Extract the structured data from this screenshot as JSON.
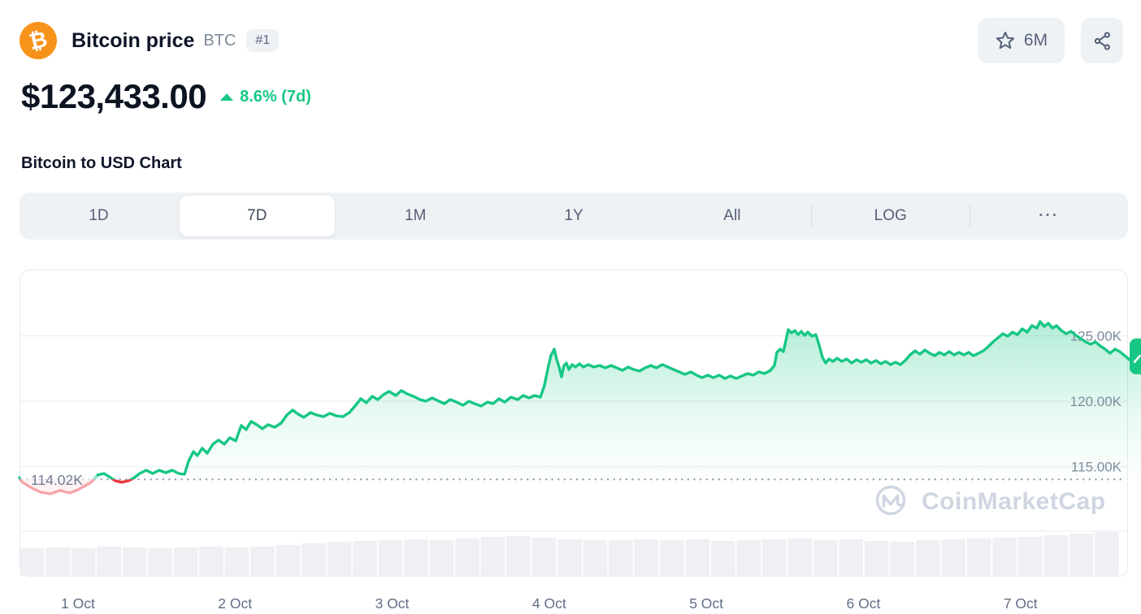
{
  "colors": {
    "accent_green": "#16c784",
    "accent_red": "#ea3943",
    "bitcoin_orange": "#f7931a",
    "muted_text": "#58667e",
    "label_gray": "#7f8b9e",
    "grid": "#eff2f5",
    "watermark": "#cfd6e2"
  },
  "header": {
    "coin_name": "Bitcoin price",
    "symbol": "BTC",
    "rank_badge": "#1",
    "watchlist_label": "6M"
  },
  "price": {
    "value": "$123,433.00",
    "change_label": "8.6% (7d)",
    "change_direction": "up"
  },
  "section": {
    "title": "Bitcoin to USD Chart"
  },
  "tabs": {
    "items": [
      {
        "label": "1D",
        "selected": false,
        "divided": false
      },
      {
        "label": "7D",
        "selected": true,
        "divided": false
      },
      {
        "label": "1M",
        "selected": false,
        "divided": false
      },
      {
        "label": "1Y",
        "selected": false,
        "divided": false
      },
      {
        "label": "All",
        "selected": false,
        "divided": false
      },
      {
        "label": "LOG",
        "selected": false,
        "divided": true
      },
      {
        "label": "···",
        "selected": false,
        "divided": true,
        "more": true
      }
    ]
  },
  "chart_data": {
    "type": "line",
    "title": "Bitcoin to USD Chart",
    "currency": "USD",
    "unit": "thousand USD (K)",
    "legend_position": "none",
    "grid": "horizontal",
    "watermark_text": "CoinMarketCap",
    "y_axis": {
      "range_k": [
        110.06,
        130.06
      ],
      "ticks": [
        {
          "value": 125,
          "label": "125.00K"
        },
        {
          "value": 120,
          "label": "120.00K"
        },
        {
          "value": 115,
          "label": "115.00K"
        }
      ]
    },
    "x_axis": {
      "unit": "date",
      "labels": [
        "1 Oct",
        "2 Oct",
        "3 Oct",
        "4 Oct",
        "5 Oct",
        "6 Oct",
        "7 Oct"
      ]
    },
    "baseline": {
      "value": 114.02,
      "label": "114.02K"
    },
    "current_price_k": 123.43,
    "series": [
      {
        "name": "BTC price (7D), thousands USD vs days since 1 Oct",
        "points": [
          [
            -0.372,
            114.16
          ],
          [
            -0.352,
            113.79
          ],
          [
            -0.3,
            113.41
          ],
          [
            -0.238,
            113.04
          ],
          [
            -0.176,
            112.92
          ],
          [
            -0.114,
            113.17
          ],
          [
            -0.052,
            112.98
          ],
          [
            0,
            113.23
          ],
          [
            0.047,
            113.54
          ],
          [
            0.083,
            113.79
          ],
          [
            0.124,
            114.35
          ],
          [
            0.166,
            114.47
          ],
          [
            0.207,
            114.16
          ],
          [
            0.238,
            113.91
          ],
          [
            0.279,
            113.79
          ],
          [
            0.321,
            113.91
          ],
          [
            0.352,
            114.1
          ],
          [
            0.393,
            114.47
          ],
          [
            0.435,
            114.72
          ],
          [
            0.476,
            114.47
          ],
          [
            0.517,
            114.72
          ],
          [
            0.559,
            114.53
          ],
          [
            0.6,
            114.72
          ],
          [
            0.641,
            114.47
          ],
          [
            0.678,
            114.41
          ],
          [
            0.704,
            115.4
          ],
          [
            0.735,
            116.15
          ],
          [
            0.76,
            115.84
          ],
          [
            0.791,
            116.4
          ],
          [
            0.823,
            116.02
          ],
          [
            0.859,
            116.71
          ],
          [
            0.895,
            117.02
          ],
          [
            0.931,
            116.71
          ],
          [
            0.967,
            117.2
          ],
          [
            1.004,
            116.96
          ],
          [
            1.04,
            118.14
          ],
          [
            1.071,
            117.83
          ],
          [
            1.102,
            118.45
          ],
          [
            1.138,
            118.2
          ],
          [
            1.174,
            117.89
          ],
          [
            1.211,
            118.2
          ],
          [
            1.252,
            118.01
          ],
          [
            1.293,
            118.32
          ],
          [
            1.33,
            118.94
          ],
          [
            1.366,
            119.32
          ],
          [
            1.402,
            119.01
          ],
          [
            1.438,
            118.76
          ],
          [
            1.48,
            119.13
          ],
          [
            1.521,
            118.94
          ],
          [
            1.562,
            118.82
          ],
          [
            1.604,
            119.07
          ],
          [
            1.645,
            118.88
          ],
          [
            1.687,
            118.82
          ],
          [
            1.728,
            119.13
          ],
          [
            1.764,
            119.63
          ],
          [
            1.8,
            120.19
          ],
          [
            1.836,
            119.88
          ],
          [
            1.873,
            120.37
          ],
          [
            1.909,
            120.12
          ],
          [
            1.945,
            120.5
          ],
          [
            1.981,
            120.75
          ],
          [
            2.023,
            120.43
          ],
          [
            2.059,
            120.81
          ],
          [
            2.095,
            120.56
          ],
          [
            2.136,
            120.37
          ],
          [
            2.178,
            120.12
          ],
          [
            2.214,
            120
          ],
          [
            2.255,
            120.25
          ],
          [
            2.297,
            120
          ],
          [
            2.333,
            119.81
          ],
          [
            2.369,
            120.12
          ],
          [
            2.411,
            119.93
          ],
          [
            2.452,
            119.69
          ],
          [
            2.488,
            120
          ],
          [
            2.524,
            119.81
          ],
          [
            2.566,
            119.63
          ],
          [
            2.607,
            119.93
          ],
          [
            2.643,
            119.81
          ],
          [
            2.68,
            120.19
          ],
          [
            2.716,
            119.93
          ],
          [
            2.757,
            120.31
          ],
          [
            2.799,
            120.12
          ],
          [
            2.835,
            120.43
          ],
          [
            2.871,
            120.25
          ],
          [
            2.907,
            120.43
          ],
          [
            2.944,
            120.31
          ],
          [
            2.969,
            121.18
          ],
          [
            2.99,
            122.42
          ],
          [
            3.011,
            123.48
          ],
          [
            3.032,
            123.98
          ],
          [
            3.047,
            123.23
          ],
          [
            3.063,
            122.61
          ],
          [
            3.078,
            121.86
          ],
          [
            3.094,
            122.73
          ],
          [
            3.109,
            122.92
          ],
          [
            3.125,
            122.42
          ],
          [
            3.145,
            122.8
          ],
          [
            3.166,
            122.61
          ],
          [
            3.192,
            122.86
          ],
          [
            3.218,
            122.61
          ],
          [
            3.249,
            122.8
          ],
          [
            3.285,
            122.61
          ],
          [
            3.321,
            122.73
          ],
          [
            3.357,
            122.55
          ],
          [
            3.394,
            122.73
          ],
          [
            3.43,
            122.55
          ],
          [
            3.466,
            122.36
          ],
          [
            3.502,
            122.61
          ],
          [
            3.538,
            122.42
          ],
          [
            3.575,
            122.3
          ],
          [
            3.611,
            122.55
          ],
          [
            3.647,
            122.73
          ],
          [
            3.683,
            122.55
          ],
          [
            3.72,
            122.8
          ],
          [
            3.756,
            122.61
          ],
          [
            3.792,
            122.42
          ],
          [
            3.828,
            122.24
          ],
          [
            3.864,
            122.05
          ],
          [
            3.901,
            122.24
          ],
          [
            3.937,
            121.99
          ],
          [
            3.973,
            121.8
          ],
          [
            4.009,
            121.99
          ],
          [
            4.045,
            121.8
          ],
          [
            4.082,
            121.99
          ],
          [
            4.118,
            121.74
          ],
          [
            4.154,
            121.93
          ],
          [
            4.19,
            121.74
          ],
          [
            4.227,
            121.93
          ],
          [
            4.263,
            122.11
          ],
          [
            4.299,
            121.99
          ],
          [
            4.335,
            122.24
          ],
          [
            4.371,
            122.11
          ],
          [
            4.408,
            122.36
          ],
          [
            4.434,
            122.73
          ],
          [
            4.449,
            123.73
          ],
          [
            4.47,
            123.98
          ],
          [
            4.491,
            123.79
          ],
          [
            4.506,
            124.6
          ],
          [
            4.522,
            125.47
          ],
          [
            4.542,
            125.22
          ],
          [
            4.563,
            125.4
          ],
          [
            4.584,
            125.09
          ],
          [
            4.604,
            125.34
          ],
          [
            4.625,
            125.03
          ],
          [
            4.646,
            125.28
          ],
          [
            4.672,
            124.97
          ],
          [
            4.697,
            125.09
          ],
          [
            4.718,
            124.29
          ],
          [
            4.739,
            123.35
          ],
          [
            4.76,
            122.92
          ],
          [
            4.78,
            123.23
          ],
          [
            4.806,
            123.04
          ],
          [
            4.832,
            123.29
          ],
          [
            4.863,
            123.04
          ],
          [
            4.894,
            123.23
          ],
          [
            4.925,
            122.92
          ],
          [
            4.956,
            123.17
          ],
          [
            4.987,
            122.98
          ],
          [
            5.018,
            123.17
          ],
          [
            5.049,
            122.92
          ],
          [
            5.08,
            123.11
          ],
          [
            5.111,
            122.86
          ],
          [
            5.142,
            123.04
          ],
          [
            5.173,
            122.8
          ],
          [
            5.204,
            122.98
          ],
          [
            5.235,
            122.8
          ],
          [
            5.266,
            123.11
          ],
          [
            5.297,
            123.54
          ],
          [
            5.329,
            123.85
          ],
          [
            5.36,
            123.6
          ],
          [
            5.391,
            123.91
          ],
          [
            5.422,
            123.66
          ],
          [
            5.453,
            123.48
          ],
          [
            5.484,
            123.73
          ],
          [
            5.515,
            123.54
          ],
          [
            5.546,
            123.79
          ],
          [
            5.577,
            123.54
          ],
          [
            5.608,
            123.73
          ],
          [
            5.639,
            123.54
          ],
          [
            5.67,
            123.73
          ],
          [
            5.701,
            123.48
          ],
          [
            5.732,
            123.66
          ],
          [
            5.763,
            123.85
          ],
          [
            5.794,
            124.16
          ],
          [
            5.825,
            124.53
          ],
          [
            5.856,
            124.84
          ],
          [
            5.887,
            125.16
          ],
          [
            5.918,
            124.97
          ],
          [
            5.949,
            125.28
          ],
          [
            5.98,
            125.09
          ],
          [
            6.011,
            125.53
          ],
          [
            6.042,
            125.28
          ],
          [
            6.073,
            125.78
          ],
          [
            6.104,
            125.59
          ],
          [
            6.125,
            126.09
          ],
          [
            6.151,
            125.71
          ],
          [
            6.177,
            125.96
          ],
          [
            6.203,
            125.59
          ],
          [
            6.229,
            125.78
          ],
          [
            6.26,
            125.4
          ],
          [
            6.291,
            125.16
          ],
          [
            6.322,
            125.34
          ],
          [
            6.353,
            125.03
          ],
          [
            6.384,
            124.78
          ],
          [
            6.415,
            124.53
          ],
          [
            6.446,
            124.35
          ],
          [
            6.477,
            124.53
          ],
          [
            6.508,
            124.22
          ],
          [
            6.539,
            123.98
          ],
          [
            6.57,
            123.66
          ],
          [
            6.601,
            123.98
          ],
          [
            6.632,
            123.79
          ],
          [
            6.663,
            123.48
          ],
          [
            6.694,
            123.17
          ],
          [
            6.725,
            122.92
          ],
          [
            6.746,
            123.11
          ],
          [
            6.767,
            123.29
          ]
        ]
      }
    ],
    "volume": {
      "type": "bars",
      "note": "relative volume silhouette, bottom pane",
      "relative_heights": [
        34,
        35,
        34,
        36,
        35,
        34,
        35,
        36,
        35,
        36,
        38,
        40,
        42,
        43,
        44,
        45,
        44,
        46,
        48,
        49,
        47,
        45,
        44,
        44,
        45,
        44,
        45,
        43,
        44,
        45,
        46,
        44,
        45,
        43,
        42,
        44,
        45,
        46,
        47,
        48,
        50,
        52,
        54
      ]
    }
  }
}
